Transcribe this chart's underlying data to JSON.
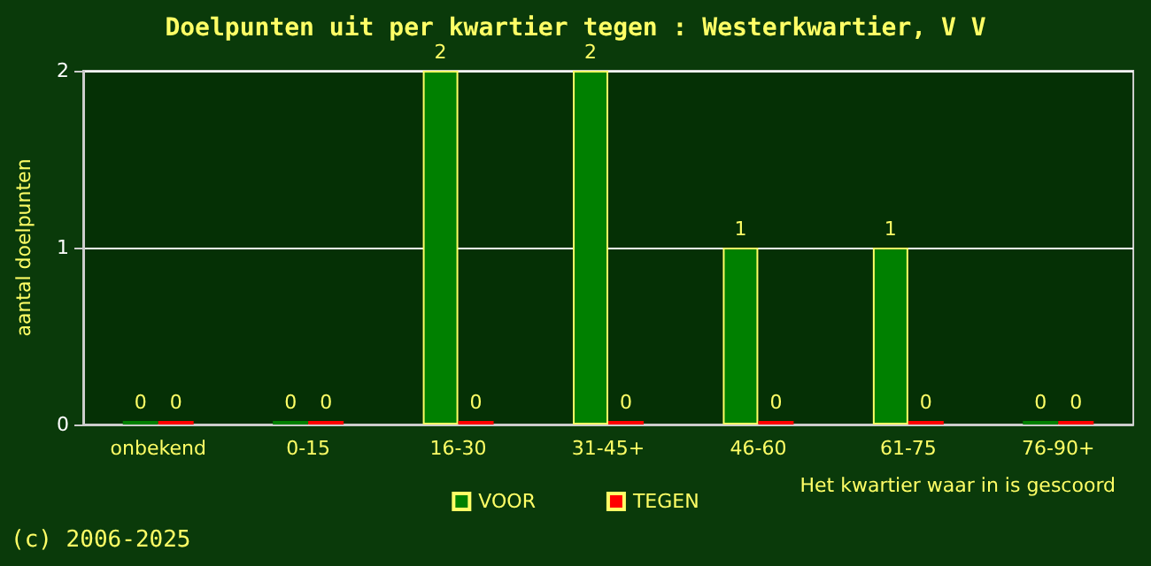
{
  "chart_data": {
    "type": "bar",
    "title": "Doelpunten uit per kwartier tegen : Westerkwartier, V V",
    "xlabel": "Het kwartier waar in is gescoord",
    "ylabel": "aantal doelpunten",
    "categories": [
      "onbekend",
      "0-15",
      "16-30",
      "31-45+",
      "46-60",
      "61-75",
      "76-90+"
    ],
    "series": [
      {
        "name": "VOOR",
        "color": "#008000",
        "values": [
          0,
          0,
          2,
          2,
          1,
          1,
          0
        ]
      },
      {
        "name": "TEGEN",
        "color": "#ff0000",
        "values": [
          0,
          0,
          0,
          0,
          0,
          0,
          0
        ]
      }
    ],
    "ylim": [
      0,
      2
    ],
    "yticks": [
      0,
      1,
      2
    ],
    "grid": "y",
    "legend": "bottom",
    "data_labels": true,
    "annotations": [
      "(c) 2006-2025"
    ]
  }
}
